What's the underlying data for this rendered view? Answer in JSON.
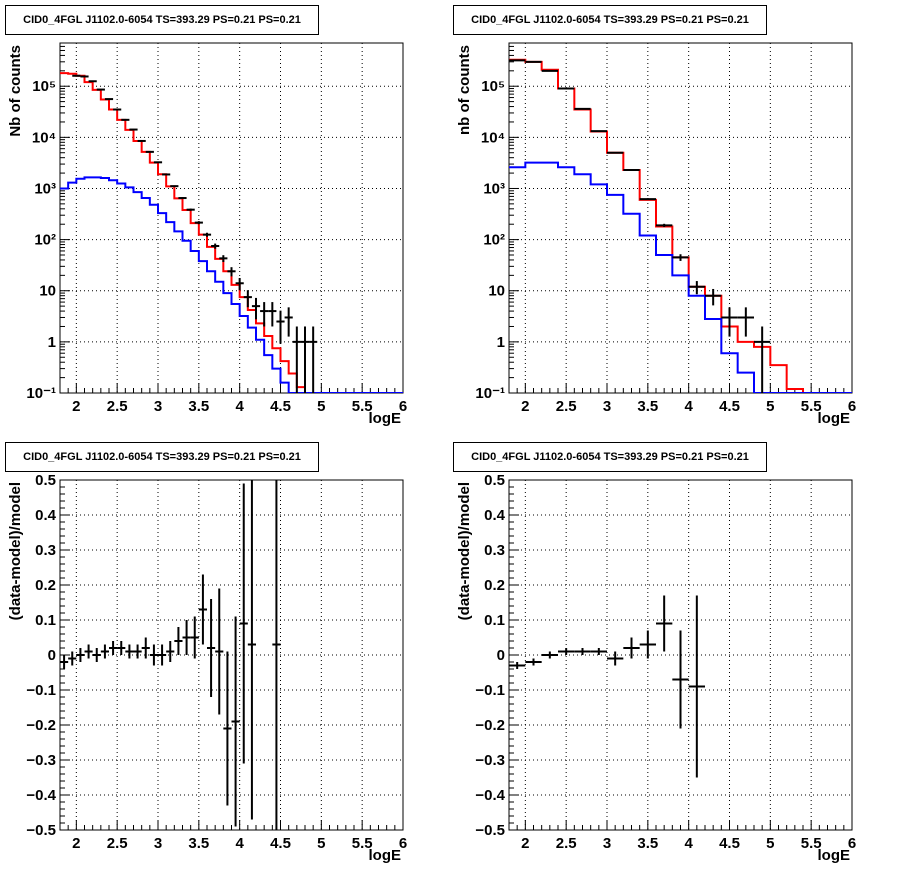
{
  "chart_data": [
    {
      "type": "line",
      "title": "CID0_4FGL J1102.0-6054 TS=393.29 PS=0.21 PS=0.21",
      "xlabel": "logE",
      "ylabel": "Nb of counts",
      "log_y": true,
      "xlim": [
        1.8,
        6.0
      ],
      "ylim": [
        0.1,
        700000
      ],
      "x_ticks": [
        "2",
        "2.5",
        "3",
        "3.5",
        "4",
        "4.5",
        "5",
        "5.5",
        "6"
      ],
      "y_ticks": [
        "10⁻¹",
        "1",
        "10",
        "10²",
        "10³",
        "10⁴",
        "10⁵"
      ],
      "grid": true,
      "legend": "none",
      "series": [
        {
          "color": "#ff0000",
          "style": "step",
          "edges": [
            1.8,
            1.9,
            2.0,
            2.1,
            2.2,
            2.3,
            2.4,
            2.5,
            2.6,
            2.7,
            2.8,
            2.9,
            3.0,
            3.1,
            3.2,
            3.3,
            3.4,
            3.5,
            3.6,
            3.7,
            3.8,
            3.9,
            4.0,
            4.1,
            4.2,
            4.3,
            4.4,
            4.5,
            4.6,
            4.7,
            4.8,
            4.9,
            5.0,
            5.1,
            5.2,
            5.3,
            5.4,
            5.5,
            5.6,
            5.7,
            5.8,
            5.9,
            6.0
          ],
          "values": [
            180000,
            175000,
            160000,
            120000,
            85000,
            55000,
            35000,
            22000,
            14000,
            8500,
            5200,
            3200,
            1900,
            1100,
            640,
            380,
            210,
            125,
            72,
            42,
            24,
            13,
            7.5,
            4.2,
            2.3,
            1.3,
            0.75,
            0.42,
            0.24,
            0.13,
            0.1,
            0.1,
            0.1,
            0.1,
            0.1,
            0.1,
            0.1,
            0.1,
            0.1,
            0.1,
            0.1,
            0.1
          ]
        },
        {
          "color": "#0000ff",
          "style": "step",
          "edges": [
            1.8,
            1.9,
            2.0,
            2.1,
            2.2,
            2.3,
            2.4,
            2.5,
            2.6,
            2.7,
            2.8,
            2.9,
            3.0,
            3.1,
            3.2,
            3.3,
            3.4,
            3.5,
            3.6,
            3.7,
            3.8,
            3.9,
            4.0,
            4.1,
            4.2,
            4.3,
            4.4,
            4.5,
            4.6,
            4.7,
            4.8,
            4.9,
            5.0,
            5.1,
            5.2,
            5.3,
            5.4,
            5.5,
            5.6,
            5.7,
            5.8,
            5.9,
            6.0
          ],
          "values": [
            1000,
            1300,
            1550,
            1650,
            1650,
            1600,
            1450,
            1250,
            1050,
            850,
            650,
            480,
            330,
            220,
            145,
            95,
            60,
            38,
            24,
            15,
            9,
            5.5,
            3.2,
            1.9,
            1.1,
            0.55,
            0.3,
            0.16,
            0.1,
            0.1,
            0.1,
            0.1,
            0.1,
            0.1,
            0.1,
            0.1,
            0.1,
            0.1,
            0.1,
            0.1,
            0.1,
            0.1
          ]
        },
        {
          "color": "#000000",
          "style": "points",
          "x": [
            2.0,
            2.1,
            2.2,
            2.3,
            2.4,
            2.5,
            2.6,
            2.7,
            2.8,
            2.9,
            3.0,
            3.1,
            3.2,
            3.3,
            3.4,
            3.5,
            3.6,
            3.7,
            3.8,
            3.9,
            4.0,
            4.1,
            4.2,
            4.3,
            4.4,
            4.5,
            4.6,
            4.7,
            4.8,
            4.9
          ],
          "y": [
            160000,
            155000,
            125000,
            86000,
            56000,
            35000,
            22000,
            14200,
            8500,
            5200,
            3250,
            1880,
            1110,
            650,
            385,
            215,
            125,
            75,
            43,
            24,
            14,
            7.5,
            5,
            4,
            4,
            2.5,
            3,
            1,
            1,
            1
          ]
        }
      ]
    },
    {
      "type": "line",
      "title": "CID0_4FGL J1102.0-6054 TS=393.29 PS=0.21 PS=0.21",
      "xlabel": "logE",
      "ylabel": "nb of counts",
      "log_y": true,
      "xlim": [
        1.8,
        6.0
      ],
      "ylim": [
        0.1,
        700000
      ],
      "x_ticks": [
        "2",
        "2.5",
        "3",
        "3.5",
        "4",
        "4.5",
        "5",
        "5.5",
        "6"
      ],
      "y_ticks": [
        "10⁻¹",
        "1",
        "10",
        "10²",
        "10³",
        "10⁴",
        "10⁵"
      ],
      "grid": true,
      "legend": "none",
      "series": [
        {
          "color": "#ff0000",
          "style": "step",
          "edges": [
            1.8,
            2.0,
            2.2,
            2.4,
            2.6,
            2.8,
            3.0,
            3.2,
            3.4,
            3.6,
            3.8,
            4.0,
            4.2,
            4.4,
            4.6,
            4.8,
            5.0,
            5.2,
            5.4,
            5.6,
            5.8,
            6.0
          ],
          "values": [
            330000,
            300000,
            210000,
            90000,
            35000,
            13000,
            5000,
            2300,
            600,
            180,
            45,
            12,
            8,
            2,
            1,
            0.8,
            0.35,
            0.12,
            0.1,
            0.1,
            0.1
          ]
        },
        {
          "color": "#0000ff",
          "style": "step",
          "edges": [
            1.8,
            2.0,
            2.2,
            2.4,
            2.6,
            2.8,
            3.0,
            3.2,
            3.4,
            3.6,
            3.8,
            4.0,
            4.2,
            4.4,
            4.6,
            4.8,
            5.0,
            5.2,
            5.4,
            5.6,
            5.8,
            6.0
          ],
          "values": [
            2600,
            3200,
            3200,
            2600,
            1900,
            1200,
            750,
            320,
            120,
            50,
            20,
            8,
            2.8,
            0.6,
            0.25,
            0.1,
            0.1,
            0.1,
            0.1,
            0.1,
            0.1
          ]
        },
        {
          "color": "#000000",
          "style": "points",
          "x": [
            1.9,
            2.1,
            2.3,
            2.5,
            2.7,
            2.9,
            3.1,
            3.3,
            3.5,
            3.7,
            3.9,
            4.1,
            4.3,
            4.5,
            4.7,
            4.9
          ],
          "y": [
            320000,
            300000,
            200000,
            90000,
            36000,
            13200,
            5000,
            2300,
            620,
            190,
            45,
            12,
            8,
            3,
            3,
            1
          ]
        }
      ]
    },
    {
      "type": "scatter",
      "title": "CID0_4FGL J1102.0-6054 TS=393.29 PS=0.21 PS=0.21",
      "xlabel": "logE",
      "ylabel": "(data-model)/model",
      "xlim": [
        1.8,
        6.0
      ],
      "ylim": [
        -0.5,
        0.5
      ],
      "x_ticks": [
        "2",
        "2.5",
        "3",
        "3.5",
        "4",
        "4.5",
        "5",
        "5.5",
        "6"
      ],
      "y_ticks": [
        "−0.5",
        "−0.4",
        "−0.3",
        "−0.2",
        "−0.1",
        "0",
        "0.1",
        "0.2",
        "0.3",
        "0.4",
        "0.5"
      ],
      "grid": true,
      "legend": "none",
      "series": [
        {
          "color": "#000000",
          "x": [
            1.85,
            1.95,
            2.05,
            2.15,
            2.25,
            2.35,
            2.45,
            2.55,
            2.65,
            2.75,
            2.85,
            2.95,
            3.05,
            3.15,
            3.25,
            3.35,
            3.45,
            3.55,
            3.65,
            3.75,
            3.85,
            3.95,
            4.05,
            4.15,
            4.45
          ],
          "y": [
            -0.02,
            -0.01,
            0.0,
            0.01,
            0.0,
            0.01,
            0.02,
            0.02,
            0.01,
            0.01,
            0.02,
            0.0,
            0.0,
            0.01,
            0.04,
            0.05,
            0.05,
            0.13,
            0.02,
            0.01,
            -0.21,
            -0.19,
            0.09,
            0.03,
            0.03
          ],
          "err": [
            0.02,
            0.02,
            0.02,
            0.02,
            0.02,
            0.02,
            0.02,
            0.02,
            0.02,
            0.02,
            0.03,
            0.03,
            0.03,
            0.03,
            0.04,
            0.05,
            0.06,
            0.1,
            0.14,
            0.18,
            0.22,
            0.3,
            0.4,
            0.5,
            0.6
          ]
        }
      ]
    },
    {
      "type": "scatter",
      "title": "CID0_4FGL J1102.0-6054 TS=393.29 PS=0.21 PS=0.21",
      "xlabel": "logE",
      "ylabel": "(data-model)/model",
      "xlim": [
        1.8,
        6.0
      ],
      "ylim": [
        -0.5,
        0.5
      ],
      "x_ticks": [
        "2",
        "2.5",
        "3",
        "3.5",
        "4",
        "4.5",
        "5",
        "5.5",
        "6"
      ],
      "y_ticks": [
        "−0.5",
        "−0.4",
        "−0.3",
        "−0.2",
        "−0.1",
        "0",
        "0.1",
        "0.2",
        "0.3",
        "0.4",
        "0.5"
      ],
      "grid": true,
      "legend": "none",
      "series": [
        {
          "color": "#000000",
          "x": [
            1.9,
            2.1,
            2.3,
            2.5,
            2.7,
            2.9,
            3.1,
            3.3,
            3.5,
            3.7,
            3.9,
            4.1
          ],
          "y": [
            -0.03,
            -0.02,
            0.0,
            0.01,
            0.01,
            0.01,
            -0.01,
            0.02,
            0.03,
            0.09,
            -0.07,
            -0.09
          ],
          "err": [
            0.01,
            0.01,
            0.01,
            0.01,
            0.01,
            0.01,
            0.02,
            0.03,
            0.04,
            0.08,
            0.14,
            0.26
          ]
        }
      ]
    }
  ]
}
